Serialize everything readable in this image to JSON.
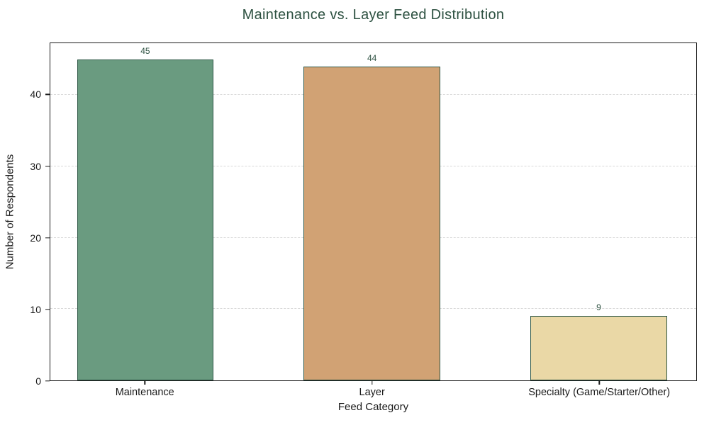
{
  "chart_data": {
    "type": "bar",
    "title": "Maintenance vs. Layer Feed Distribution",
    "xlabel": "Feed Category",
    "ylabel": "Number of Respondents",
    "categories": [
      "Maintenance",
      "Layer",
      "Specialty (Game/Starter/Other)"
    ],
    "values": [
      45,
      44,
      9
    ],
    "value_labels": [
      "45",
      "44",
      "9"
    ],
    "ytick_labels": [
      "0",
      "10",
      "20",
      "30",
      "40"
    ],
    "yticks": [
      0,
      10,
      20,
      30,
      40
    ],
    "ylim": [
      0,
      47.25
    ],
    "grid": "horizontal-dashed",
    "legend": "none",
    "colors": {
      "bar_fills": [
        "#6a9b80",
        "#d1a274",
        "#ead8a6"
      ],
      "bar_edge": "#2f5847",
      "title_text": "#2d5141",
      "value_label_text": "#2d5141",
      "grid_line": "#d8d8d8",
      "axis_frame": "#1a1a1a",
      "tick_text": "#1a1a1a"
    }
  }
}
